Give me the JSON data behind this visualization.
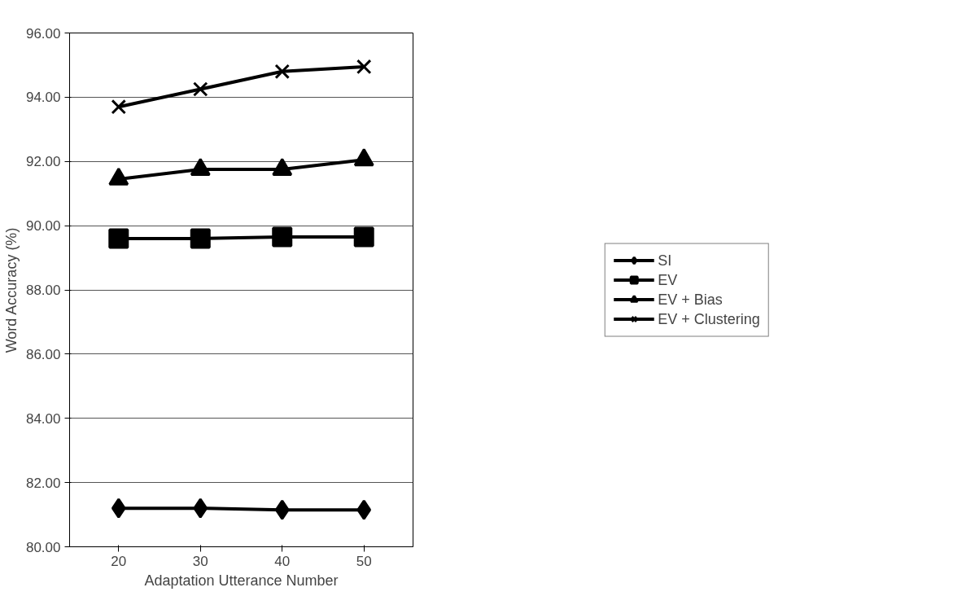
{
  "chart_data": {
    "type": "line",
    "xlabel": "Adaptation Utterance Number",
    "ylabel": "Word Accuracy (%)",
    "categories": [
      "20",
      "30",
      "40",
      "50"
    ],
    "series": [
      {
        "name": "SI",
        "color": "#000000",
        "marker": "diamond",
        "values": [
          81.2,
          81.2,
          81.15,
          81.15
        ]
      },
      {
        "name": "EV",
        "color": "#000000",
        "marker": "square",
        "values": [
          89.6,
          89.6,
          89.65,
          89.65
        ]
      },
      {
        "name": "EV + Bias",
        "color": "#000000",
        "marker": "triangle",
        "values": [
          91.45,
          91.75,
          91.75,
          92.05
        ]
      },
      {
        "name": "EV + Clustering",
        "color": "#000000",
        "marker": "cross",
        "values": [
          93.7,
          94.25,
          94.8,
          94.95
        ]
      }
    ],
    "ylim": [
      80,
      96
    ],
    "yticks": [
      {
        "value": 80,
        "label": "80.00"
      },
      {
        "value": 82,
        "label": "82.00"
      },
      {
        "value": 84,
        "label": "84.00"
      },
      {
        "value": 86,
        "label": "86.00"
      },
      {
        "value": 88,
        "label": "88.00"
      },
      {
        "value": 90,
        "label": "90.00"
      },
      {
        "value": 92,
        "label": "92.00"
      },
      {
        "value": 94,
        "label": "94.00"
      },
      {
        "value": 96,
        "label": "96.00"
      }
    ],
    "grid": "y",
    "legend": "right",
    "line_style": "solid"
  }
}
